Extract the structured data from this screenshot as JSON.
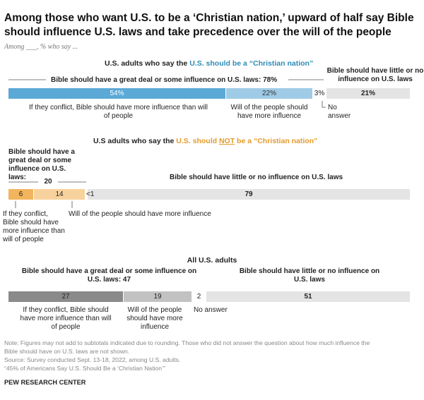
{
  "title": "Among those who want U.S. to be a ‘Christian nation,’ upward of half say Bible should influence U.S. laws and take precedence over the will of the people",
  "subtitle": "Among ___, % who say ...",
  "colors": {
    "blue_dark": "#5aa9d6",
    "blue_light": "#9fcbe6",
    "orange_dark": "#f2b45c",
    "orange_light": "#f8d29c",
    "gray_dark": "#8a8a8a",
    "gray_mid": "#c2c2c2",
    "gray_light": "#e4e4e4"
  },
  "chart_data": [
    {
      "type": "bar",
      "orientation": "horizontal-stacked",
      "group_title_prefix": "U.S. adults who say the ",
      "group_title_highlight": "U.S. should be a “Christian nation”",
      "subtotal_label": "Bible should have a great deal or some influence on U.S. laws: 78%",
      "subtotal_value": 78,
      "right_header": "Bible should have little or no influence on U.S. laws",
      "segments": [
        {
          "label_text": "54%",
          "value": 54,
          "desc": "If they conflict, Bible should have more influence than will of people"
        },
        {
          "label_text": "22%",
          "value": 22,
          "desc": "Will of the people should have more influence"
        },
        {
          "label_text": "3%",
          "value": 3,
          "desc": "No answer"
        },
        {
          "label_text": "21%",
          "value": 21,
          "desc": ""
        }
      ]
    },
    {
      "type": "bar",
      "orientation": "horizontal-stacked",
      "group_title_prefix": "U.S adults who say the ",
      "group_title_highlight_a": "U.S. should ",
      "group_title_highlight_not": "NOT",
      "group_title_highlight_b": " be a “Christian nation”",
      "subtotal_label": "Bible should have a great deal or some influence on U.S. laws:",
      "subtotal_value_text": "20",
      "subtotal_value": 20,
      "right_header": "Bible should have little or no influence on U.S. laws",
      "segments": [
        {
          "label_text": "6",
          "value": 6,
          "desc": "If they conflict, Bible should have more influence than will of people"
        },
        {
          "label_text": "14",
          "value": 14,
          "desc": "Will of the people should have more influence"
        },
        {
          "label_text": "<1",
          "value": 0.5,
          "desc": ""
        },
        {
          "label_text": "79",
          "value": 79,
          "desc": ""
        }
      ]
    },
    {
      "type": "bar",
      "orientation": "horizontal-stacked",
      "group_title": "All U.S. adults",
      "subtotal_label": "Bible should have a great deal or some influence on U.S. laws: 47",
      "subtotal_value": 47,
      "right_header": "Bible should have little or no influence on U.S. laws",
      "segments": [
        {
          "label_text": "27",
          "value": 27,
          "desc": "If they conflict, Bible should have more influence than will of people"
        },
        {
          "label_text": "19",
          "value": 19,
          "desc": "Will of the people should have more influence"
        },
        {
          "label_text": "2",
          "value": 2,
          "desc": "No answer"
        },
        {
          "label_text": "51",
          "value": 51,
          "desc": ""
        }
      ]
    }
  ],
  "notes": {
    "note1": "Note: Figures may not add to subtotals indicated due to rounding. Those who did not answer the question about how much influence the",
    "note2": "Bible should have on U.S. laws are not shown.",
    "source": "Source: Survey conducted Sept. 13-18, 2022, among U.S. adults.",
    "report": "“45% of Americans Say U.S. Should Be a ‘Christian Nation’”",
    "org": "PEW RESEARCH CENTER"
  }
}
